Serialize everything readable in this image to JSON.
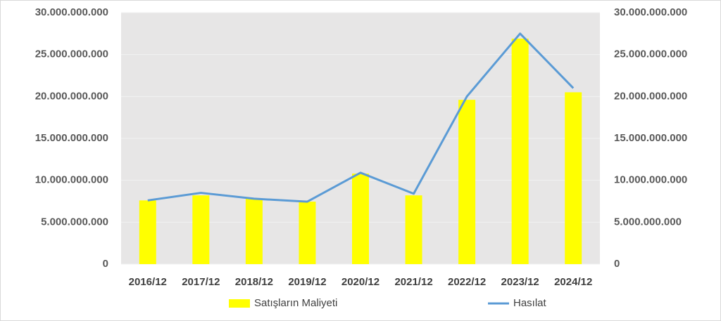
{
  "chart_data": {
    "type": "bar-line",
    "categories": [
      "2016/12",
      "2017/12",
      "2018/12",
      "2019/12",
      "2020/12",
      "2021/12",
      "2022/12",
      "2023/12",
      "2024/12"
    ],
    "series": [
      {
        "name": "Satışların Maliyeti",
        "type": "bar",
        "color": "#ffff00",
        "values": [
          7600000000,
          8200000000,
          7800000000,
          7450000000,
          10800000000,
          8200000000,
          19600000000,
          26900000000,
          20500000000
        ]
      },
      {
        "name": "Hasılat",
        "type": "line",
        "axis": "y2",
        "color": "#5b9bd5",
        "values": [
          7600000000,
          8500000000,
          7800000000,
          7450000000,
          10900000000,
          8400000000,
          20000000000,
          27500000000,
          21000000000
        ]
      }
    ],
    "ylim": [
      0,
      30000000000
    ],
    "yticks": [
      0,
      {
        "value": 5000000000,
        "label": "5.000.000.000"
      },
      {
        "value": 10000000000,
        "label": "10.000.000.000"
      },
      {
        "value": 15000000000,
        "label": "15.000.000.000"
      },
      {
        "value": 20000000000,
        "label": "20.000.000.000"
      },
      {
        "value": 25000000000,
        "label": "25.000.000.000"
      },
      {
        "value": 30000000000,
        "label": "30.000.000.000"
      }
    ],
    "y2lim": [
      0,
      30000000000
    ],
    "y2ticks": [
      0,
      {
        "value": 5000000000,
        "label": "5.000.000.000"
      },
      {
        "value": 10000000000,
        "label": "10.000.000.000"
      },
      {
        "value": 15000000000,
        "label": "15.000.000.000"
      },
      {
        "value": 20000000000,
        "label": "20.000.000.000"
      },
      {
        "value": 25000000000,
        "label": "25.000.000.000"
      },
      {
        "value": 30000000000,
        "label": "30.000.000.000"
      }
    ],
    "grid": true,
    "legend": "bottom"
  }
}
